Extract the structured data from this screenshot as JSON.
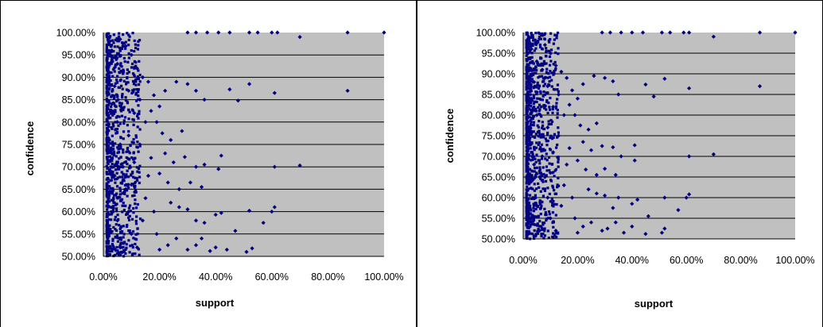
{
  "colors": {
    "plot_bg": "#c0c0c0",
    "marker": "#000080",
    "gridline": "#000000",
    "page_bg": "#ffffff"
  },
  "chart_data": [
    {
      "type": "scatter",
      "title": "",
      "xlabel": "support",
      "ylabel": "confidence",
      "xlim": [
        0,
        1
      ],
      "ylim": [
        0.5,
        1
      ],
      "x_ticks": [
        "0.00%",
        "20.00%",
        "40.00%",
        "60.00%",
        "80.00%",
        "100.00%"
      ],
      "y_ticks": [
        "50.00%",
        "55.00%",
        "60.00%",
        "65.00%",
        "70.00%",
        "75.00%",
        "80.00%",
        "85.00%",
        "90.00%",
        "95.00%",
        "100.00%"
      ],
      "grid": "horizontal",
      "legend": "none",
      "series": [
        {
          "points": [
            [
              1.0,
              1.0
            ],
            [
              0.87,
              1.0
            ],
            [
              0.7,
              0.99
            ],
            [
              0.62,
              1.0
            ],
            [
              0.6,
              1.0
            ],
            [
              0.55,
              1.0
            ],
            [
              0.52,
              1.0
            ],
            [
              0.45,
              1.0
            ],
            [
              0.41,
              1.0
            ],
            [
              0.37,
              1.0
            ],
            [
              0.33,
              1.0
            ],
            [
              0.3,
              1.0
            ],
            [
              0.87,
              0.87
            ],
            [
              0.61,
              0.865
            ],
            [
              0.52,
              0.885
            ],
            [
              0.48,
              0.848
            ],
            [
              0.45,
              0.873
            ],
            [
              0.36,
              0.85
            ],
            [
              0.33,
              0.87
            ],
            [
              0.3,
              0.885
            ],
            [
              0.26,
              0.89
            ],
            [
              0.22,
              0.87
            ],
            [
              0.7,
              0.703
            ],
            [
              0.61,
              0.7
            ],
            [
              0.42,
              0.725
            ],
            [
              0.41,
              0.695
            ],
            [
              0.36,
              0.705
            ],
            [
              0.33,
              0.7
            ],
            [
              0.29,
              0.722
            ],
            [
              0.25,
              0.71
            ],
            [
              0.22,
              0.73
            ],
            [
              0.61,
              0.61
            ],
            [
              0.6,
              0.6
            ],
            [
              0.57,
              0.575
            ],
            [
              0.52,
              0.602
            ],
            [
              0.47,
              0.557
            ],
            [
              0.42,
              0.597
            ],
            [
              0.4,
              0.593
            ],
            [
              0.36,
              0.575
            ],
            [
              0.33,
              0.58
            ],
            [
              0.3,
              0.605
            ],
            [
              0.27,
              0.61
            ],
            [
              0.24,
              0.62
            ],
            [
              0.53,
              0.518
            ],
            [
              0.51,
              0.51
            ],
            [
              0.44,
              0.515
            ],
            [
              0.4,
              0.52
            ],
            [
              0.38,
              0.512
            ],
            [
              0.35,
              0.54
            ],
            [
              0.33,
              0.525
            ],
            [
              0.3,
              0.515
            ],
            [
              0.26,
              0.54
            ],
            [
              0.23,
              0.525
            ],
            [
              0.2,
              0.515
            ],
            [
              0.35,
              0.655
            ],
            [
              0.31,
              0.665
            ],
            [
              0.27,
              0.65
            ],
            [
              0.23,
              0.665
            ],
            [
              0.2,
              0.685
            ],
            [
              0.28,
              0.78
            ],
            [
              0.24,
              0.76
            ],
            [
              0.21,
              0.775
            ],
            [
              0.19,
              0.8
            ],
            [
              0.17,
              0.825
            ],
            [
              0.2,
              0.835
            ],
            [
              0.18,
              0.86
            ],
            [
              0.16,
              0.89
            ],
            [
              0.14,
              0.9
            ],
            [
              0.12,
              0.92
            ],
            [
              0.1,
              0.95
            ],
            [
              0.08,
              0.97
            ],
            [
              0.06,
              0.985
            ],
            [
              0.05,
              0.93
            ],
            [
              0.04,
              0.88
            ],
            [
              0.05,
              0.8
            ],
            [
              0.06,
              0.75
            ],
            [
              0.07,
              0.7
            ],
            [
              0.08,
              0.65
            ],
            [
              0.09,
              0.6
            ],
            [
              0.1,
              0.55
            ],
            [
              0.12,
              0.52
            ],
            [
              0.14,
              0.58
            ],
            [
              0.15,
              0.63
            ],
            [
              0.16,
              0.68
            ],
            [
              0.17,
              0.72
            ],
            [
              0.18,
              0.6
            ],
            [
              0.19,
              0.55
            ],
            [
              0.13,
              0.75
            ],
            [
              0.11,
              0.82
            ],
            [
              0.09,
              0.87
            ],
            [
              0.07,
              0.91
            ],
            [
              0.03,
              0.96
            ],
            [
              0.02,
              0.99
            ],
            [
              0.03,
              0.73
            ],
            [
              0.02,
              0.64
            ],
            [
              0.02,
              0.55
            ],
            [
              0.03,
              0.84
            ],
            [
              0.04,
              0.68
            ],
            [
              0.05,
              0.58
            ],
            [
              0.06,
              0.52
            ],
            [
              0.15,
              0.8
            ],
            [
              0.13,
              0.85
            ],
            [
              0.11,
              0.71
            ],
            [
              0.1,
              0.66
            ],
            [
              0.09,
              0.77
            ]
          ]
        }
      ]
    },
    {
      "type": "scatter",
      "title": "",
      "xlabel": "support",
      "ylabel": "confidence",
      "xlim": [
        0,
        1
      ],
      "ylim": [
        0.5,
        1
      ],
      "x_ticks": [
        "0.00%",
        "20.00%",
        "40.00%",
        "60.00%",
        "80.00%",
        "100.00%"
      ],
      "y_ticks": [
        "50.00%",
        "55.00%",
        "60.00%",
        "65.00%",
        "70.00%",
        "75.00%",
        "80.00%",
        "85.00%",
        "90.00%",
        "95.00%",
        "100.00%"
      ],
      "grid": "horizontal",
      "legend": "none",
      "series": [
        {
          "points": [
            [
              1.0,
              1.0
            ],
            [
              0.87,
              1.0
            ],
            [
              0.7,
              0.99
            ],
            [
              0.61,
              1.0
            ],
            [
              0.59,
              1.0
            ],
            [
              0.54,
              1.0
            ],
            [
              0.51,
              1.0
            ],
            [
              0.44,
              1.0
            ],
            [
              0.4,
              1.0
            ],
            [
              0.36,
              1.0
            ],
            [
              0.32,
              1.0
            ],
            [
              0.29,
              1.0
            ],
            [
              0.87,
              0.87
            ],
            [
              0.61,
              0.865
            ],
            [
              0.52,
              0.888
            ],
            [
              0.48,
              0.845
            ],
            [
              0.45,
              0.874
            ],
            [
              0.35,
              0.85
            ],
            [
              0.33,
              0.882
            ],
            [
              0.3,
              0.89
            ],
            [
              0.26,
              0.895
            ],
            [
              0.22,
              0.875
            ],
            [
              0.7,
              0.705
            ],
            [
              0.61,
              0.7
            ],
            [
              0.41,
              0.727
            ],
            [
              0.41,
              0.69
            ],
            [
              0.36,
              0.7
            ],
            [
              0.33,
              0.722
            ],
            [
              0.29,
              0.725
            ],
            [
              0.25,
              0.715
            ],
            [
              0.22,
              0.735
            ],
            [
              0.61,
              0.608
            ],
            [
              0.6,
              0.6
            ],
            [
              0.57,
              0.57
            ],
            [
              0.52,
              0.6
            ],
            [
              0.46,
              0.555
            ],
            [
              0.42,
              0.595
            ],
            [
              0.4,
              0.585
            ],
            [
              0.35,
              0.6
            ],
            [
              0.33,
              0.575
            ],
            [
              0.3,
              0.605
            ],
            [
              0.27,
              0.61
            ],
            [
              0.24,
              0.62
            ],
            [
              0.52,
              0.525
            ],
            [
              0.51,
              0.515
            ],
            [
              0.45,
              0.512
            ],
            [
              0.4,
              0.53
            ],
            [
              0.37,
              0.515
            ],
            [
              0.34,
              0.54
            ],
            [
              0.31,
              0.525
            ],
            [
              0.29,
              0.52
            ],
            [
              0.25,
              0.54
            ],
            [
              0.22,
              0.53
            ],
            [
              0.2,
              0.515
            ],
            [
              0.34,
              0.655
            ],
            [
              0.3,
              0.67
            ],
            [
              0.27,
              0.655
            ],
            [
              0.23,
              0.668
            ],
            [
              0.2,
              0.69
            ],
            [
              0.27,
              0.78
            ],
            [
              0.24,
              0.765
            ],
            [
              0.21,
              0.775
            ],
            [
              0.19,
              0.8
            ],
            [
              0.17,
              0.825
            ],
            [
              0.2,
              0.84
            ],
            [
              0.18,
              0.86
            ],
            [
              0.16,
              0.89
            ],
            [
              0.14,
              0.905
            ],
            [
              0.12,
              0.92
            ],
            [
              0.1,
              0.95
            ],
            [
              0.08,
              0.97
            ],
            [
              0.06,
              0.985
            ],
            [
              0.05,
              0.93
            ],
            [
              0.04,
              0.88
            ],
            [
              0.05,
              0.8
            ],
            [
              0.06,
              0.75
            ],
            [
              0.07,
              0.7
            ],
            [
              0.08,
              0.65
            ],
            [
              0.09,
              0.6
            ],
            [
              0.1,
              0.55
            ],
            [
              0.12,
              0.52
            ],
            [
              0.14,
              0.58
            ],
            [
              0.15,
              0.63
            ],
            [
              0.16,
              0.68
            ],
            [
              0.17,
              0.72
            ],
            [
              0.18,
              0.6
            ],
            [
              0.19,
              0.55
            ],
            [
              0.13,
              0.75
            ],
            [
              0.11,
              0.82
            ],
            [
              0.09,
              0.87
            ],
            [
              0.07,
              0.91
            ],
            [
              0.03,
              0.96
            ],
            [
              0.02,
              0.99
            ],
            [
              0.03,
              0.73
            ],
            [
              0.02,
              0.64
            ],
            [
              0.02,
              0.55
            ],
            [
              0.03,
              0.84
            ],
            [
              0.04,
              0.68
            ],
            [
              0.05,
              0.58
            ],
            [
              0.06,
              0.52
            ],
            [
              0.15,
              0.8
            ],
            [
              0.13,
              0.85
            ],
            [
              0.11,
              0.71
            ],
            [
              0.1,
              0.66
            ],
            [
              0.09,
              0.77
            ]
          ]
        }
      ]
    }
  ]
}
